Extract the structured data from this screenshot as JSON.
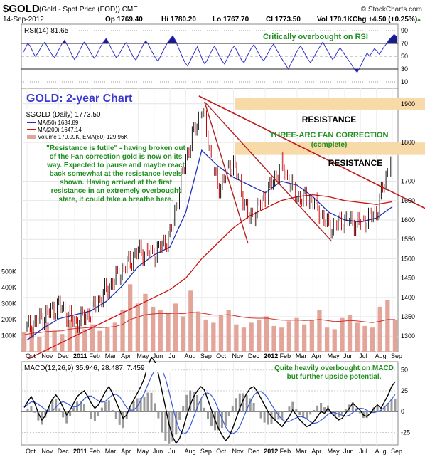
{
  "header": {
    "symbol": "$GOLD",
    "desc": "(Gold - Spot Price (EOD)) CME",
    "brand": "© StockCharts.com",
    "date": "14-Sep-2012",
    "op": "Op 1769.40",
    "hi": "Hi 1780.20",
    "lo": "Lo 1767.70",
    "cl": "Cl 1773.50",
    "vol": "Vol 170.1K",
    "chg": "Chg +4.50 (+0.25%)",
    "chg_arrow": "▲"
  },
  "rsi": {
    "label": "RSI(14) 81.65",
    "note": "Critically overbought on RSI",
    "ticks": [
      "90",
      "70",
      "50",
      "30",
      "10"
    ],
    "values": [
      55,
      62,
      70,
      66,
      58,
      50,
      54,
      61,
      68,
      72,
      65,
      58,
      52,
      48,
      55,
      63,
      70,
      75,
      68,
      60,
      52,
      45,
      50,
      58,
      66,
      72,
      67,
      60,
      53,
      47,
      52,
      60,
      67,
      73,
      78,
      70,
      62,
      55,
      48,
      52,
      59,
      66,
      71,
      64,
      56,
      49,
      44,
      52,
      60,
      68,
      74,
      69,
      61,
      54,
      47,
      42,
      50,
      58,
      65,
      72,
      77,
      82,
      75,
      66,
      57,
      48,
      40,
      35,
      42,
      50,
      58,
      65,
      55,
      45,
      38,
      44,
      52,
      60,
      66,
      58,
      50,
      43,
      38,
      45,
      53,
      61,
      66,
      59,
      51,
      44,
      40,
      48,
      56,
      63,
      68,
      61,
      54,
      47,
      43,
      50,
      57,
      64,
      69,
      62,
      55,
      48,
      42,
      36,
      30,
      38,
      46,
      54,
      61,
      66,
      59,
      52,
      45,
      40,
      46,
      53,
      60,
      66,
      72,
      65,
      58,
      51,
      45,
      50,
      57,
      63,
      58,
      52,
      46,
      41,
      35,
      29,
      25,
      32,
      40,
      48,
      55,
      50,
      56,
      62,
      58,
      53,
      59,
      65,
      70,
      76,
      80,
      84,
      81
    ]
  },
  "main": {
    "title": "GOLD: 2-year Chart",
    "legend": {
      "price": "$GOLD (Daily) 1773.50",
      "ma50": "MA(50) 1634.89",
      "ma200": "MA(200) 1647.14",
      "volume": "Volume 170.09K, EMA(60) 129.96K"
    },
    "annotation": [
      "\"Resistance is futile\" - having broken out",
      "of the Fan correction gold is now on its",
      "way. Expected to pause and maybe react",
      "back somewhat at the resistance levels",
      "shown. Having arrived at the first",
      "resistance in an extremely overbought",
      "state, it could take a breathe here."
    ],
    "resistance_labels": [
      "RESISTANCE",
      "RESISTANCE"
    ],
    "fan_label": [
      "THREE-ARC FAN CORRECTION",
      "(complete)"
    ],
    "price_ticks": [
      "1900",
      "1800",
      "1700",
      "1650",
      "1600",
      "1550",
      "1500",
      "1450",
      "1400",
      "1350",
      "1300"
    ],
    "volume_ticks": [
      "500K",
      "400K",
      "300K",
      "200K",
      "100K"
    ],
    "x_labels": [
      "Oct",
      "Nov",
      "Dec",
      "2011",
      "Feb",
      "Mar",
      "Apr",
      "May",
      "Jun",
      "Jul",
      "Aug",
      "Sep",
      "Oct",
      "Nov",
      "Dec",
      "2012",
      "Feb",
      "Mar",
      "Apr",
      "May",
      "Jun",
      "Jul",
      "Aug",
      "Sep"
    ]
  },
  "macd": {
    "label": "MACD(12,26,9) 35.946, 28.487, 7.459",
    "note": [
      "Quite heavily overbought on MACD",
      "but further upside potential."
    ],
    "ticks": [
      "50",
      "25",
      "0",
      "-25"
    ]
  },
  "colors": {
    "up": "#1a1a1a",
    "down": "#cc0000",
    "ma50": "#1f2fbf",
    "ma200": "#cc1111",
    "rsi_line": "#3030c8",
    "rsi_fill": "#1a1a8c",
    "band": "#f8d9a8",
    "note_green": "#1f8f1f",
    "title_blue": "#3b3bd1",
    "vol_bar": "#e3a59a",
    "macd_line": "#000000",
    "macd_signal": "#3b5bdc",
    "macd_hist": "#9a9a9a"
  },
  "chart_data": {
    "type": "line",
    "title": "GOLD: 2-year Chart",
    "x": [
      "Oct",
      "Nov",
      "Dec",
      "2011",
      "Feb",
      "Mar",
      "Apr",
      "May",
      "Jun",
      "Jul",
      "Aug",
      "Sep",
      "Oct",
      "Nov",
      "Dec",
      "2012",
      "Feb",
      "Mar",
      "Apr",
      "May",
      "Jun",
      "Jul",
      "Aug",
      "Sep"
    ],
    "price_ylim": [
      1260,
      1940
    ],
    "series": [
      {
        "name": "$GOLD (Daily) 1773.50",
        "values": [
          1320,
          1350,
          1380,
          1335,
          1360,
          1420,
          1470,
          1520,
          1510,
          1560,
          1760,
          1890,
          1680,
          1750,
          1600,
          1660,
          1740,
          1660,
          1650,
          1580,
          1600,
          1590,
          1620,
          1773
        ]
      },
      {
        "name": "MA(50) 1634.89",
        "values": [
          1290,
          1320,
          1345,
          1355,
          1365,
          1390,
          1430,
          1480,
          1510,
          1530,
          1620,
          1780,
          1740,
          1710,
          1690,
          1670,
          1700,
          1690,
          1660,
          1620,
          1600,
          1595,
          1605,
          1634
        ]
      },
      {
        "name": "MA(200) 1647.14",
        "values": [
          1240,
          1260,
          1280,
          1300,
          1320,
          1340,
          1360,
          1380,
          1400,
          1420,
          1450,
          1500,
          1540,
          1580,
          1610,
          1630,
          1650,
          1660,
          1665,
          1660,
          1650,
          1645,
          1640,
          1647
        ]
      }
    ],
    "resistance_levels": [
      1900,
      1785
    ],
    "volume_ylim": [
      0,
      550
    ],
    "volume_values": [
      120,
      150,
      90,
      180,
      130,
      110,
      200,
      160,
      140,
      170,
      130,
      150,
      180,
      260,
      420,
      300,
      360,
      280,
      260,
      240,
      300,
      220,
      380,
      250,
      200,
      180,
      230,
      260,
      170,
      150,
      180,
      200,
      220,
      160,
      150,
      190,
      210,
      170,
      200,
      260,
      150,
      140,
      210,
      230,
      180,
      160,
      150,
      280,
      320,
      200
    ],
    "volume_ema": [
      105,
      115,
      118,
      125,
      128,
      130,
      140,
      145,
      148,
      152,
      150,
      152,
      156,
      170,
      200,
      215,
      230,
      235,
      238,
      237,
      240,
      236,
      245,
      242,
      236,
      228,
      228,
      230,
      222,
      214,
      210,
      208,
      209,
      202,
      196,
      195,
      197,
      194,
      195,
      201,
      194,
      187,
      190,
      194,
      191,
      186,
      181,
      189,
      200,
      200
    ],
    "macd_ylim": [
      -40,
      60
    ],
    "macd_values": [
      5,
      12,
      18,
      10,
      -2,
      -10,
      -5,
      6,
      15,
      20,
      14,
      5,
      -4,
      2,
      10,
      18,
      22,
      25,
      18,
      10,
      4,
      8,
      16,
      24,
      30,
      22,
      12,
      2,
      -8,
      -4,
      6,
      14,
      22,
      30,
      40,
      55,
      65,
      60,
      45,
      25,
      5,
      -15,
      -30,
      -38,
      -32,
      -20,
      -5,
      8,
      18,
      25,
      30,
      26,
      14,
      2,
      -10,
      -20,
      -28,
      -35,
      -30,
      -20,
      -8,
      4,
      14,
      22,
      28,
      30,
      24,
      16,
      8,
      0,
      -6,
      -10,
      -14,
      -18,
      -12,
      -6,
      2,
      -4,
      -10,
      -14,
      -18,
      -16,
      -12,
      -6,
      0,
      -2,
      4,
      -2,
      -6,
      -10,
      -8,
      -2,
      4,
      10,
      6,
      2,
      -4,
      -6,
      -2,
      4,
      8,
      4,
      12,
      20,
      30,
      36
    ]
  }
}
